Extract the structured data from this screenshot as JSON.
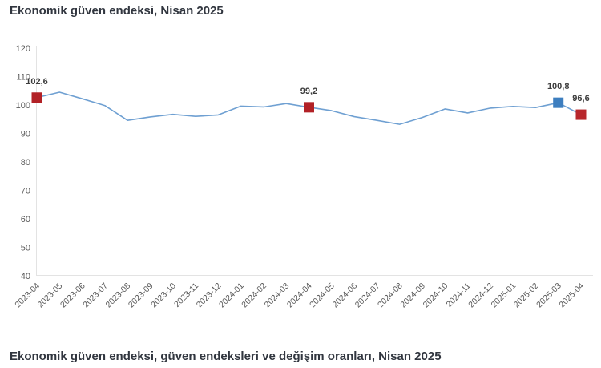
{
  "header": {
    "title": "Ekonomik güven endeksi, Nisan 2025"
  },
  "footer": {
    "heading": "Ekonomik güven endeksi, güven endeksleri ve değişim oranları, Nisan 2025"
  },
  "chart_data": {
    "type": "line",
    "title": "Ekonomik güven endeksi, Nisan 2025",
    "xlabel": "",
    "ylabel": "",
    "ylim": [
      40,
      120
    ],
    "y_ticks": [
      40,
      50,
      60,
      70,
      80,
      90,
      100,
      110,
      120
    ],
    "grid": false,
    "legend": "none",
    "categories": [
      "2023-04",
      "2023-05",
      "2023-06",
      "2023-07",
      "2023-08",
      "2023-09",
      "2023-10",
      "2023-11",
      "2023-12",
      "2024-01",
      "2024-02",
      "2024-03",
      "2024-04",
      "2024-05",
      "2024-06",
      "2024-07",
      "2024-08",
      "2024-09",
      "2024-10",
      "2024-11",
      "2024-12",
      "2025-01",
      "2025-02",
      "2025-03",
      "2025-04"
    ],
    "series": [
      {
        "name": "Ekonomik güven endeksi",
        "values": [
          102.6,
          104.5,
          102.2,
          99.8,
          94.6,
          95.8,
          96.7,
          96.0,
          96.5,
          99.6,
          99.3,
          100.5,
          99.2,
          98.0,
          95.9,
          94.6,
          93.2,
          95.6,
          98.6,
          97.2,
          98.9,
          99.5,
          99.1,
          100.8,
          96.6
        ]
      }
    ],
    "labeled_points": [
      {
        "category": "2023-04",
        "index": 0,
        "value": 102.6,
        "label": "102,6",
        "marker_color": "#b22126"
      },
      {
        "category": "2024-04",
        "index": 12,
        "value": 99.2,
        "label": "99,2",
        "marker_color": "#b22126"
      },
      {
        "category": "2025-03",
        "index": 23,
        "value": 100.8,
        "label": "100,8",
        "marker_color": "#3d7ebf"
      },
      {
        "category": "2025-04",
        "index": 24,
        "value": 96.6,
        "label": "96,6",
        "marker_color": "#b8272c"
      }
    ],
    "line_color": "#6fa0d2",
    "axis_color": "#e3e3e3",
    "tick_color": "#595959",
    "data_label_color": "#3d3d3d"
  }
}
